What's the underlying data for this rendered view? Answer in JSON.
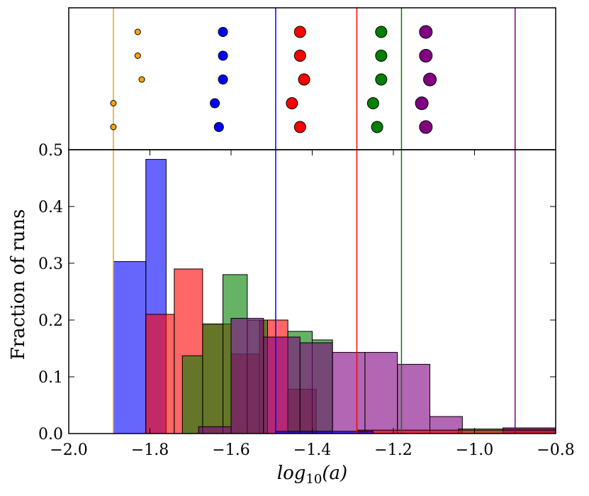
{
  "chart_data": {
    "type": "bar",
    "xlabel_base": "log",
    "xlabel_sub": "10",
    "xlabel_arg": "(a)",
    "ylabel": "Fraction of runs",
    "xlim": [
      -2.0,
      -0.8
    ],
    "ylim": [
      0.0,
      0.5
    ],
    "xticks": [
      -2.0,
      -1.8,
      -1.6,
      -1.4,
      -1.2,
      -1.0,
      -0.8
    ],
    "xtick_labels": [
      "−2.0",
      "−1.8",
      "−1.6",
      "−1.4",
      "−1.2",
      "−1.0",
      "−0.8"
    ],
    "yticks": [
      0.0,
      0.1,
      0.2,
      0.3,
      0.4,
      0.5
    ],
    "ytick_labels": [
      "0.0",
      "0.1",
      "0.2",
      "0.3",
      "0.4",
      "0.5"
    ],
    "grid": false,
    "histograms": [
      {
        "color": "#0000ff",
        "opacity": 0.6,
        "edges": [
          -1.89,
          -1.81,
          -1.76,
          -1.68,
          -1.62,
          -1.56,
          -1.49,
          -1.43,
          -1.37,
          -1.31,
          -1.25
        ],
        "values": [
          0.303,
          0.483,
          0.0,
          0.0,
          0.0,
          0.0,
          0.0,
          0.0,
          0.0,
          0.0
        ]
      },
      {
        "color": "#ff0000",
        "opacity": 0.6,
        "edges": [
          -1.81,
          -1.74,
          -1.67,
          -1.6,
          -1.53,
          -1.46,
          -1.39,
          -1.32,
          -1.25,
          -1.18,
          -1.11
        ],
        "values": [
          0.21,
          0.29,
          0.193,
          0.14,
          0.2,
          0.078,
          0.0,
          0.0,
          0.0,
          0.0
        ]
      },
      {
        "color": "#008000",
        "opacity": 0.6,
        "edges": [
          -1.72,
          -1.67,
          -1.62,
          -1.56,
          -1.51,
          -1.46,
          -1.4,
          -1.35,
          -1.29,
          -1.25,
          -1.19,
          -1.14,
          -1.09,
          -1.04,
          -0.98,
          -0.93,
          -0.88
        ],
        "values": [
          0.137,
          0.193,
          0.28,
          0.2,
          0.0,
          0.18,
          0.165,
          0.0,
          0.0,
          0.0,
          0.0,
          0.0,
          0.0,
          0.0,
          0.0,
          0.0
        ]
      },
      {
        "color": "#800080",
        "opacity": 0.6,
        "edges": [
          -1.68,
          -1.6,
          -1.52,
          -1.43,
          -1.35,
          -1.27,
          -1.19,
          -1.11,
          -1.03,
          -0.95,
          -0.87,
          -0.8
        ],
        "values": [
          0.012,
          0.203,
          0.17,
          0.16,
          0.143,
          0.143,
          0.122,
          0.03,
          0.0,
          0.0,
          0.0
        ]
      }
    ],
    "tails": [
      {
        "color": "#008000",
        "x0": -1.04,
        "x1": -0.8,
        "y": 0.008
      },
      {
        "color": "#800080",
        "x0": -0.93,
        "x1": -0.8,
        "y": 0.01
      },
      {
        "color": "#ff0000",
        "x0": -1.29,
        "x1": -0.8,
        "y": 0.006
      },
      {
        "color": "#0000ff",
        "x0": -1.49,
        "x1": -1.25,
        "y": 0.004
      }
    ],
    "vlines": [
      {
        "color": "#e8a317",
        "x": -1.89
      },
      {
        "color": "#0000ff",
        "x": -1.49
      },
      {
        "color": "#ff0000",
        "x": -1.29
      },
      {
        "color": "#008000",
        "x": -1.18
      },
      {
        "color": "#800080",
        "x": -0.9
      }
    ],
    "points": [
      {
        "color": "#ffa500",
        "size": 4,
        "x": [
          -1.83,
          -1.83,
          -1.82,
          -1.89,
          -1.89
        ],
        "row": [
          1,
          2,
          3,
          4,
          5
        ]
      },
      {
        "color": "#0000ff",
        "size": 6.5,
        "x": [
          -1.62,
          -1.62,
          -1.62,
          -1.64,
          -1.63
        ],
        "row": [
          1,
          2,
          3,
          4,
          5
        ]
      },
      {
        "color": "#ff0000",
        "size": 8,
        "x": [
          -1.43,
          -1.43,
          -1.42,
          -1.45,
          -1.43
        ],
        "row": [
          1,
          2,
          3,
          4,
          5
        ]
      },
      {
        "color": "#008000",
        "size": 8,
        "x": [
          -1.23,
          -1.23,
          -1.23,
          -1.25,
          -1.24
        ],
        "row": [
          1,
          2,
          3,
          4,
          5
        ]
      },
      {
        "color": "#800080",
        "size": 9,
        "x": [
          -1.12,
          -1.12,
          -1.11,
          -1.13,
          -1.12
        ],
        "row": [
          1,
          2,
          3,
          4,
          5
        ]
      }
    ]
  }
}
